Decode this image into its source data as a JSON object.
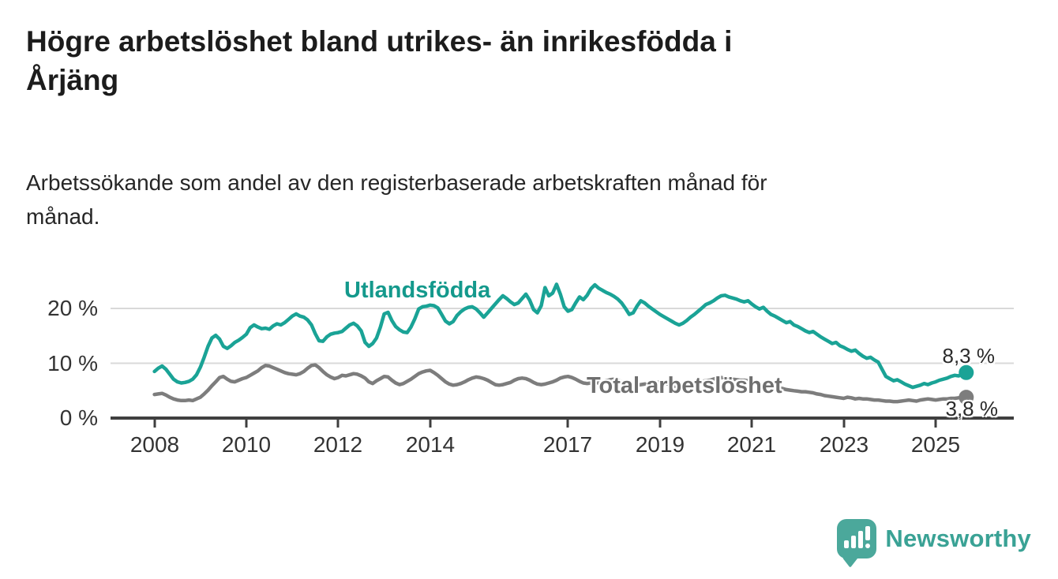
{
  "chart_data": {
    "type": "line",
    "title": "Högre arbetslöshet bland utrikes- än inrikesfödda i Årjäng",
    "title_lines": [
      "Högre arbetslöshet bland utrikes- än inrikesfödda i",
      "Årjäng"
    ],
    "subtitle": "Arbetssökande som andel av den registerbaserade arbetskraften månad för månad.",
    "subtitle_lines": [
      "Arbetssökande som andel av den registerbaserade arbetskraften månad för",
      "månad."
    ],
    "x_unit": "month",
    "y_unit": "percent",
    "x_start": "2008-01",
    "x_end": "2025-09",
    "grid": "horizontal",
    "legend": "inline-labels",
    "ylim": [
      0,
      26
    ],
    "x_ticks": [
      {
        "label": "2008"
      },
      {
        "label": "2010"
      },
      {
        "label": "2012"
      },
      {
        "label": "2014"
      },
      {
        "label": "2017"
      },
      {
        "label": "2019"
      },
      {
        "label": "2021"
      },
      {
        "label": "2023"
      },
      {
        "label": "2025"
      }
    ],
    "y_ticks": [
      {
        "value": 0,
        "label": "0 %"
      },
      {
        "value": 10,
        "label": "10 %"
      },
      {
        "value": 20,
        "label": "20 %"
      }
    ],
    "series": [
      {
        "name": "Utlandsfödda",
        "color": "#1aa396",
        "end_label": "8,3 %",
        "last_value": 8.3,
        "values": [
          8.5,
          9.1,
          9.5,
          8.9,
          8.0,
          7.1,
          6.6,
          6.4,
          6.5,
          6.7,
          7.1,
          7.9,
          9.3,
          11.1,
          13.1,
          14.6,
          15.1,
          14.4,
          13.1,
          12.7,
          13.2,
          13.8,
          14.2,
          14.7,
          15.3,
          16.5,
          17.0,
          16.6,
          16.3,
          16.4,
          16.2,
          16.8,
          17.2,
          17.0,
          17.4,
          18.0,
          18.6,
          19.0,
          18.6,
          18.4,
          17.9,
          17.0,
          15.4,
          14.1,
          14.0,
          14.8,
          15.3,
          15.5,
          15.6,
          15.8,
          16.4,
          17.0,
          17.3,
          16.8,
          15.9,
          13.8,
          13.1,
          13.6,
          14.6,
          16.6,
          19.0,
          19.3,
          17.8,
          16.7,
          16.1,
          15.7,
          15.6,
          16.6,
          18.1,
          19.9,
          20.3,
          20.4,
          20.6,
          20.5,
          20.1,
          18.9,
          17.7,
          17.2,
          17.6,
          18.7,
          19.4,
          19.9,
          20.2,
          20.3,
          19.9,
          19.2,
          18.4,
          19.2,
          20.0,
          20.8,
          21.6,
          22.3,
          21.8,
          21.2,
          20.7,
          21.0,
          21.8,
          22.6,
          21.5,
          19.8,
          19.2,
          20.5,
          23.8,
          22.3,
          22.8,
          24.4,
          22.6,
          20.3,
          19.5,
          19.8,
          21.0,
          22.1,
          21.6,
          22.4,
          23.6,
          24.3,
          23.7,
          23.3,
          22.9,
          22.6,
          22.2,
          21.7,
          21.0,
          20.0,
          18.9,
          19.2,
          20.4,
          21.4,
          21.0,
          20.4,
          19.9,
          19.4,
          18.9,
          18.5,
          18.1,
          17.7,
          17.3,
          17.0,
          17.3,
          17.8,
          18.4,
          18.9,
          19.5,
          20.1,
          20.7,
          21.0,
          21.4,
          21.9,
          22.3,
          22.4,
          22.1,
          21.9,
          21.7,
          21.4,
          21.2,
          21.4,
          20.8,
          20.3,
          19.9,
          20.2,
          19.5,
          18.9,
          18.6,
          18.2,
          17.8,
          17.4,
          17.6,
          17.0,
          16.7,
          16.3,
          15.9,
          15.6,
          15.8,
          15.3,
          14.8,
          14.4,
          14.0,
          13.6,
          13.8,
          13.2,
          12.9,
          12.5,
          12.2,
          12.4,
          11.8,
          11.3,
          10.9,
          11.1,
          10.6,
          10.2,
          8.9,
          7.6,
          7.2,
          6.8,
          7.0,
          6.6,
          6.2,
          5.9,
          5.6,
          5.8,
          6.0,
          6.3,
          6.1,
          6.4,
          6.6,
          6.9,
          7.1,
          7.3,
          7.6,
          7.8,
          7.7,
          8.0,
          8.3
        ]
      },
      {
        "name": "Total arbetslöshet",
        "color": "#7d7d7d",
        "end_label": "3,8 %",
        "last_value": 3.8,
        "values": [
          4.3,
          4.4,
          4.5,
          4.2,
          3.8,
          3.5,
          3.3,
          3.2,
          3.2,
          3.3,
          3.2,
          3.5,
          3.8,
          4.4,
          5.1,
          5.9,
          6.6,
          7.4,
          7.6,
          7.1,
          6.7,
          6.6,
          6.9,
          7.2,
          7.4,
          7.8,
          8.2,
          8.6,
          9.2,
          9.6,
          9.5,
          9.2,
          8.9,
          8.6,
          8.3,
          8.1,
          8.0,
          7.9,
          8.1,
          8.5,
          9.1,
          9.6,
          9.7,
          9.2,
          8.5,
          7.9,
          7.5,
          7.2,
          7.4,
          7.8,
          7.7,
          7.9,
          8.1,
          8.0,
          7.7,
          7.3,
          6.6,
          6.3,
          6.8,
          7.2,
          7.6,
          7.5,
          6.9,
          6.4,
          6.1,
          6.3,
          6.7,
          7.1,
          7.6,
          8.1,
          8.4,
          8.6,
          8.7,
          8.3,
          7.8,
          7.2,
          6.6,
          6.2,
          6.0,
          6.1,
          6.3,
          6.6,
          7.0,
          7.3,
          7.5,
          7.4,
          7.2,
          6.9,
          6.5,
          6.1,
          6.0,
          6.1,
          6.3,
          6.5,
          6.9,
          7.2,
          7.3,
          7.2,
          6.9,
          6.5,
          6.2,
          6.1,
          6.2,
          6.4,
          6.6,
          6.9,
          7.3,
          7.5,
          7.6,
          7.4,
          7.1,
          6.7,
          6.4,
          6.3,
          6.4,
          6.5,
          6.4,
          6.6,
          6.8,
          7.0,
          7.1,
          6.9,
          6.6,
          6.3,
          6.1,
          5.9,
          6.0,
          6.1,
          6.2,
          6.3,
          6.5,
          6.6,
          6.5,
          6.4,
          6.2,
          6.0,
          5.8,
          5.9,
          6.0,
          6.2,
          6.3,
          6.4,
          6.5,
          6.7,
          6.8,
          6.9,
          7.1,
          7.3,
          7.4,
          7.3,
          7.2,
          7.1,
          7.0,
          6.9,
          6.9,
          6.8,
          6.7,
          6.5,
          6.3,
          6.1,
          6.0,
          5.8,
          5.6,
          5.5,
          5.4,
          5.2,
          5.1,
          5.0,
          4.9,
          4.8,
          4.8,
          4.7,
          4.6,
          4.4,
          4.3,
          4.1,
          4.0,
          3.9,
          3.8,
          3.7,
          3.6,
          3.8,
          3.7,
          3.5,
          3.6,
          3.5,
          3.5,
          3.4,
          3.3,
          3.3,
          3.2,
          3.1,
          3.1,
          3.0,
          3.0,
          3.1,
          3.2,
          3.3,
          3.2,
          3.1,
          3.3,
          3.4,
          3.5,
          3.4,
          3.3,
          3.4,
          3.5,
          3.5,
          3.6,
          3.6,
          3.7,
          3.7,
          3.8
        ]
      }
    ],
    "colors": {
      "accent_teal": "#1aa396",
      "series_gray": "#7d7d7d",
      "gridline": "#d9d9d9",
      "axis": "#3f3f3f",
      "text": "#1c1c1c"
    }
  },
  "logo": {
    "wordmark": "Newsworthy",
    "icon": "bar-chart-bubble-icon",
    "color": "#3aa295"
  }
}
